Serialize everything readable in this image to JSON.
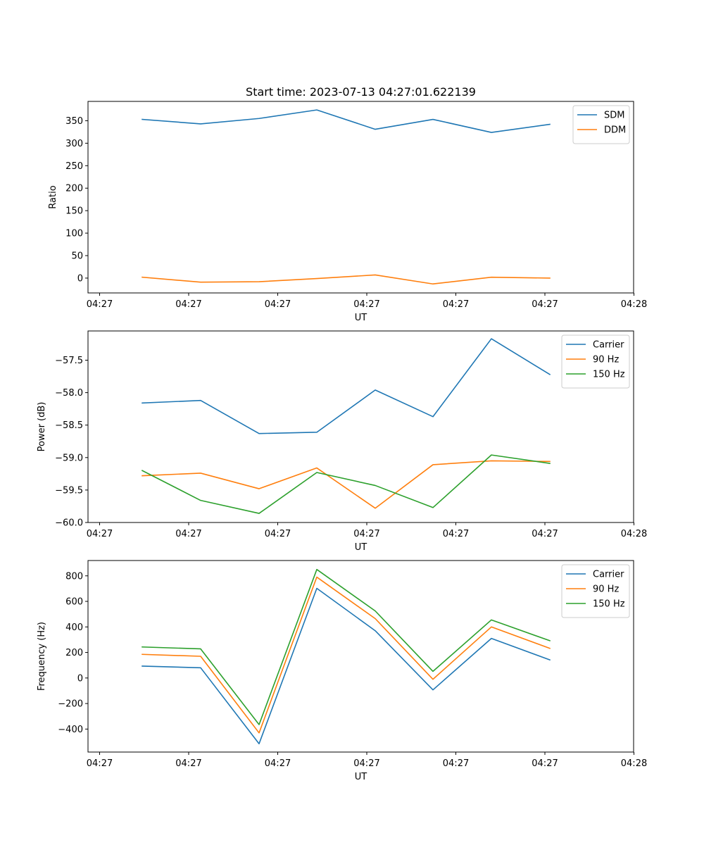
{
  "figure_title": "Start time: 2023-07-13 04:27:01.622139",
  "chart_data": [
    {
      "type": "line",
      "title": "Start time: 2023-07-13 04:27:01.622139",
      "xlabel": "UT",
      "ylabel": "Ratio",
      "x_tick_labels": [
        "04:27",
        "04:27",
        "04:27",
        "04:27",
        "04:27",
        "04:27",
        "04:28"
      ],
      "ylim": [
        -33,
        393
      ],
      "yticks": [
        0,
        50,
        100,
        150,
        200,
        250,
        300,
        350
      ],
      "legend_position": "top-right",
      "series": [
        {
          "name": "SDM",
          "color": "#1f77b4",
          "values": [
            353,
            343,
            355,
            374,
            331,
            353,
            324,
            342
          ]
        },
        {
          "name": "DDM",
          "color": "#ff7f0e",
          "values": [
            2,
            -9,
            -8,
            -1,
            7,
            -13,
            2,
            0
          ]
        }
      ]
    },
    {
      "type": "line",
      "title": "",
      "xlabel": "UT",
      "ylabel": "Power (dB)",
      "x_tick_labels": [
        "04:27",
        "04:27",
        "04:27",
        "04:27",
        "04:27",
        "04:27",
        "04:28"
      ],
      "ylim": [
        -60.0,
        -57.05
      ],
      "yticks": [
        -60.0,
        -59.5,
        -59.0,
        -58.5,
        -58.0,
        -57.5
      ],
      "ytick_labels": [
        "−60.0",
        "−59.5",
        "−59.0",
        "−58.5",
        "−58.0",
        "−57.5"
      ],
      "legend_position": "top-right",
      "series": [
        {
          "name": "Carrier",
          "color": "#1f77b4",
          "values": [
            -58.16,
            -58.12,
            -58.63,
            -58.61,
            -57.96,
            -58.37,
            -57.17,
            -57.72
          ]
        },
        {
          "name": "90 Hz",
          "color": "#ff7f0e",
          "values": [
            -59.28,
            -59.24,
            -59.48,
            -59.16,
            -59.78,
            -59.11,
            -59.05,
            -59.06
          ]
        },
        {
          "name": "150 Hz",
          "color": "#2ca02c",
          "values": [
            -59.2,
            -59.66,
            -59.86,
            -59.23,
            -59.43,
            -59.77,
            -58.96,
            -59.09
          ]
        }
      ]
    },
    {
      "type": "line",
      "title": "",
      "xlabel": "UT",
      "ylabel": "Frequency (Hz)",
      "x_tick_labels": [
        "04:27",
        "04:27",
        "04:27",
        "04:27",
        "04:27",
        "04:27",
        "04:28"
      ],
      "ylim": [
        -580,
        920
      ],
      "yticks": [
        -400,
        -200,
        0,
        200,
        400,
        600,
        800
      ],
      "ytick_labels": [
        "−400",
        "−200",
        "0",
        "200",
        "400",
        "600",
        "800"
      ],
      "legend_position": "top-right",
      "series": [
        {
          "name": "Carrier",
          "color": "#1f77b4",
          "values": [
            93,
            80,
            -515,
            702,
            370,
            -93,
            310,
            142
          ]
        },
        {
          "name": "90 Hz",
          "color": "#ff7f0e",
          "values": [
            185,
            170,
            -430,
            790,
            465,
            -10,
            400,
            232
          ]
        },
        {
          "name": "150 Hz",
          "color": "#2ca02c",
          "values": [
            243,
            228,
            -365,
            850,
            525,
            52,
            455,
            292
          ]
        }
      ]
    }
  ]
}
